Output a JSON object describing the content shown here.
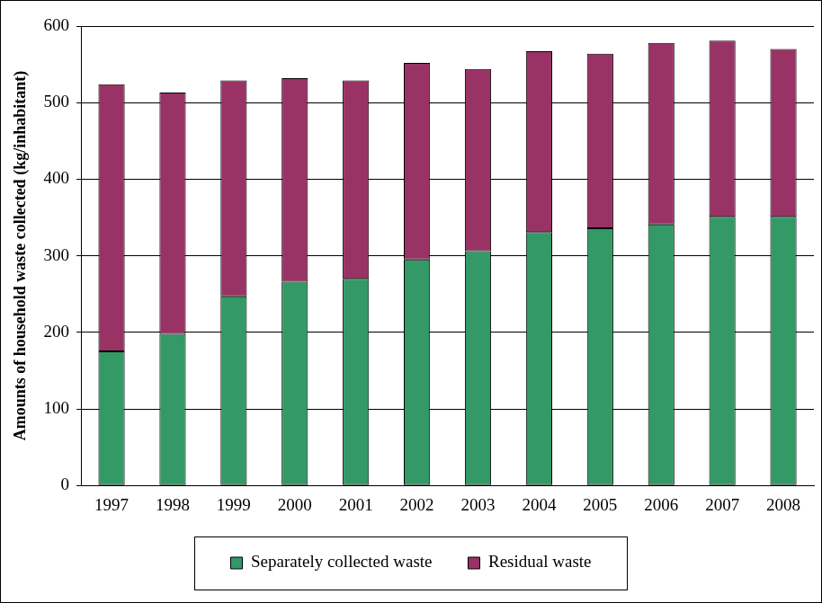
{
  "chart_data": {
    "type": "bar",
    "stacked": true,
    "y_label": "Amounts of household waste collected (kg/inhabitant)",
    "categories": [
      "1997",
      "1998",
      "1999",
      "2000",
      "2001",
      "2002",
      "2003",
      "2004",
      "2005",
      "2006",
      "2007",
      "2008"
    ],
    "series": [
      {
        "name": "Separately collected waste",
        "color": "#339966",
        "values": [
          175,
          198,
          247,
          266,
          270,
          295,
          306,
          331,
          336,
          341,
          351,
          351
        ]
      },
      {
        "name": "Residual waste",
        "color": "#993366",
        "values": [
          349,
          315,
          282,
          266,
          259,
          257,
          238,
          236,
          228,
          237,
          230,
          219
        ]
      }
    ],
    "ylim": [
      0,
      600
    ],
    "yticks": [
      0,
      100,
      200,
      300,
      400,
      500,
      600
    ],
    "grid": true,
    "legend": "bottom"
  }
}
